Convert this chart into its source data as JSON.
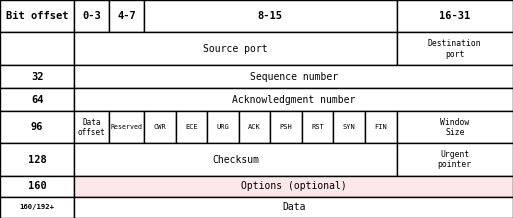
{
  "fig_width": 5.13,
  "fig_height": 2.18,
  "dpi": 100,
  "bg_color": "#ffffff",
  "border_color": "#000000",
  "pink_color": "#fce8e8",
  "font_family": "monospace",
  "lw": 1.0,
  "ox": 0.0,
  "ow": 0.145,
  "c0x": 0.145,
  "c0w": 0.068,
  "c1w": 0.068,
  "c2w": 0.492,
  "rh": [
    0.148,
    0.152,
    0.105,
    0.105,
    0.148,
    0.148,
    0.097,
    0.097
  ],
  "header_labels": [
    "Bit offset",
    "0-3",
    "4-7",
    "8-15",
    "16-31"
  ],
  "flag_labels": [
    "CWR",
    "ECE",
    "URG",
    "ACK",
    "PSH",
    "RST",
    "SYN",
    "FIN"
  ],
  "row_labels": [
    "",
    "32",
    "64",
    "96",
    "128",
    "160",
    "160/192+"
  ],
  "main_fontsize": 7.0,
  "small_fontsize": 5.8,
  "flag_fontsize": 5.0,
  "bold_fontsize": 7.5
}
